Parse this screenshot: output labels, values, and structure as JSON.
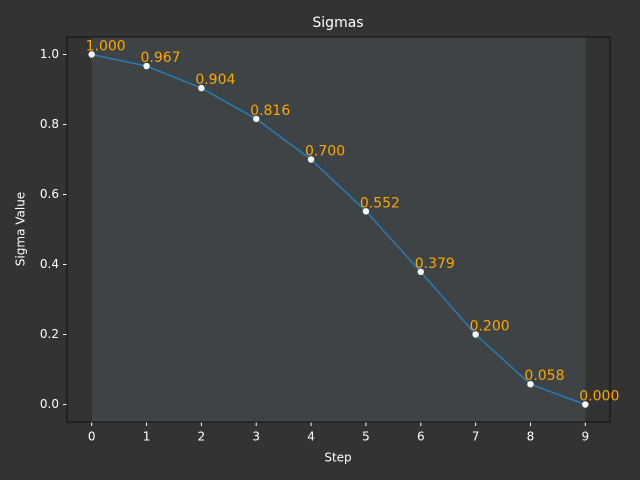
{
  "chart_data": {
    "type": "line",
    "title": "Sigmas",
    "xlabel": "Step",
    "ylabel": "Sigma Value",
    "x": [
      0,
      1,
      2,
      3,
      4,
      5,
      6,
      7,
      8,
      9
    ],
    "series": [
      {
        "name": "Sigmas",
        "color": "#2a7bb5",
        "values": [
          1,
          0.967,
          0.904,
          0.816,
          0.7,
          0.552,
          0.379,
          0.2,
          0.058,
          0
        ],
        "value_labels": [
          "1.000",
          "0.967",
          "0.904",
          "0.816",
          "0.700",
          "0.552",
          "0.379",
          "0.200",
          "0.058",
          "0.000"
        ]
      }
    ],
    "label_color": "#ffa500",
    "marker_color": "#ffffff",
    "span": [
      0,
      9
    ],
    "span_color": "#3e4445",
    "xlim": [
      -0.45,
      9.45
    ],
    "ylim": [
      -0.05,
      1.05
    ],
    "xticks": [
      0,
      1,
      2,
      3,
      4,
      5,
      6,
      7,
      8,
      9
    ],
    "yticks": [
      {
        "value": 0,
        "label": "0.0"
      },
      0.2,
      0.4,
      0.6,
      0.8,
      {
        "value": 1,
        "label": "1.0"
      }
    ],
    "grid": false
  }
}
